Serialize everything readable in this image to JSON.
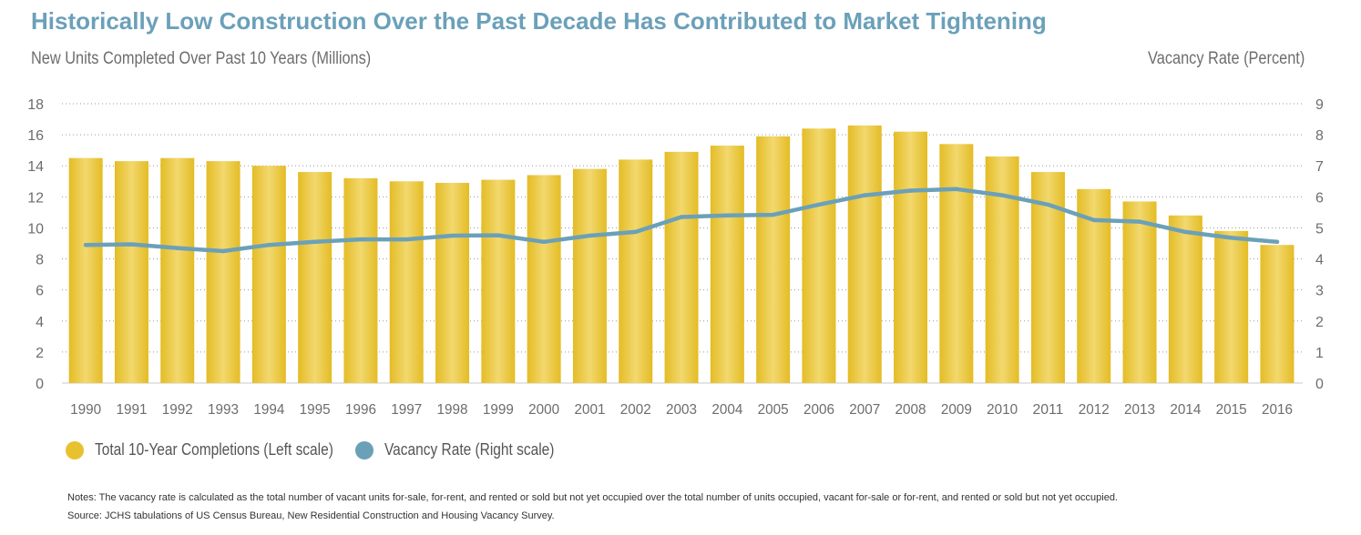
{
  "title": "Historically Low Construction Over the Past Decade Has Contributed to Market Tightening",
  "left_axis_title": "New Units Completed Over Past 10 Years (Millions)",
  "right_axis_title": "Vacancy Rate (Percent)",
  "legend": {
    "bars": "Total 10-Year Completions (Left scale)",
    "line": "Vacancy Rate (Right scale)"
  },
  "notes": "Notes: The vacancy rate is calculated as the total number of vacant units for-sale, for-rent, and rented or sold but not yet occupied over the total number of units occupied, vacant for-sale or for-rent, and rented or sold but not yet occupied.",
  "source": "Source: JCHS tabulations of US Census Bureau, New Residential Construction and Housing Vacancy Survey.",
  "colors": {
    "bar": "#e8c12f",
    "bar_highlight": "#f2d86e",
    "line": "#6ba0b9",
    "title": "#6ba0b9",
    "axis_text": "#6d6d6d"
  },
  "chart_data": {
    "type": "bar",
    "categories": [
      "1990",
      "1991",
      "1992",
      "1993",
      "1994",
      "1995",
      "1996",
      "1997",
      "1998",
      "1999",
      "2000",
      "2001",
      "2002",
      "2003",
      "2004",
      "2005",
      "2006",
      "2007",
      "2008",
      "2009",
      "2010",
      "2011",
      "2012",
      "2013",
      "2014",
      "2015",
      "2016"
    ],
    "series": [
      {
        "name": "Total 10-Year Completions (Left scale)",
        "type": "bar",
        "axis": "left",
        "values": [
          14.5,
          14.3,
          14.5,
          14.3,
          14.0,
          13.6,
          13.2,
          13.0,
          12.9,
          13.1,
          13.4,
          13.8,
          14.4,
          14.9,
          15.3,
          15.9,
          16.4,
          16.6,
          16.2,
          15.4,
          14.6,
          13.6,
          12.5,
          11.7,
          10.8,
          9.8,
          8.9
        ]
      },
      {
        "name": "Vacancy Rate (Right scale)",
        "type": "line",
        "axis": "right",
        "values": [
          4.45,
          4.47,
          4.35,
          4.25,
          4.45,
          4.55,
          4.63,
          4.63,
          4.75,
          4.76,
          4.55,
          4.75,
          4.87,
          5.35,
          5.4,
          5.42,
          5.75,
          6.05,
          6.2,
          6.25,
          6.05,
          5.75,
          5.25,
          5.2,
          4.87,
          4.68,
          4.55
        ]
      }
    ],
    "ylim_left": [
      0,
      18
    ],
    "yticks_left": [
      0,
      2,
      4,
      6,
      8,
      10,
      12,
      14,
      16,
      18
    ],
    "ylim_right": [
      0,
      9
    ],
    "yticks_right": [
      0,
      1,
      2,
      3,
      4,
      5,
      6,
      7,
      8,
      9
    ],
    "grid": "horizontal dotted",
    "legend_position": "bottom-left"
  }
}
